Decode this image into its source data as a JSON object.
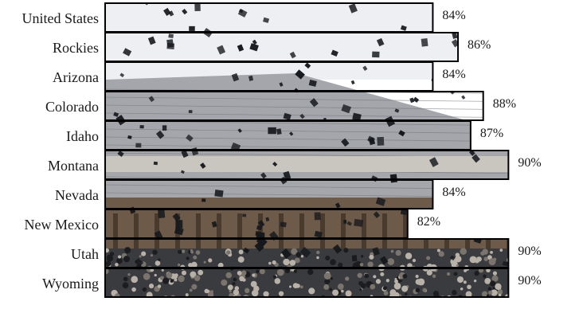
{
  "chart_data": {
    "type": "bar",
    "orientation": "horizontal",
    "categories": [
      "United States",
      "Rockies",
      "Arizona",
      "Colorado",
      "Idaho",
      "Montana",
      "Nevada",
      "New Mexico",
      "Utah",
      "Wyoming"
    ],
    "values": [
      84,
      86,
      84,
      88,
      87,
      90,
      84,
      82,
      90,
      90
    ],
    "value_labels": [
      "84%",
      "86%",
      "84%",
      "88%",
      "87%",
      "90%",
      "84%",
      "82%",
      "90%",
      "90%"
    ],
    "unit": "%",
    "title": "",
    "xlabel": "",
    "ylabel": "",
    "xlim": [
      58,
      92
    ],
    "grid": false,
    "legend": "none",
    "bar_fill": "photo-texture",
    "colors": {
      "sky": "#eeeff2",
      "roof": "#a4a6ab",
      "roof_dark": "#6f7278",
      "building": "#6d5a48",
      "crowd": "#3a3b3f",
      "crowd_light": "#b8b1a8",
      "cap": "#15181c",
      "outline": "#000000",
      "text": "#1a1a1a"
    }
  }
}
